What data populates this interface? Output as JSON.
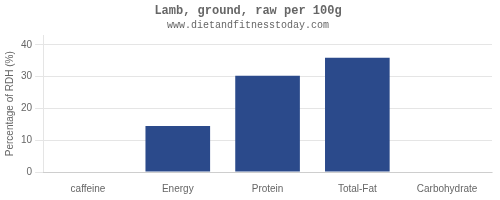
{
  "chart_data": {
    "type": "bar",
    "title": "Lamb, ground, raw per 100g",
    "subtitle": "www.dietandfitnesstoday.com",
    "categories": [
      "caffeine",
      "Energy",
      "Protein",
      "Total-Fat",
      "Carbohydrate"
    ],
    "values": [
      0,
      14.5,
      30.3,
      36.0,
      0
    ],
    "color": "#2b4a8b",
    "ylabel": "Percentage of RDH (%)",
    "ylim": [
      0,
      43
    ],
    "yticks": [
      0,
      10,
      20,
      30,
      40
    ],
    "grid": true
  }
}
